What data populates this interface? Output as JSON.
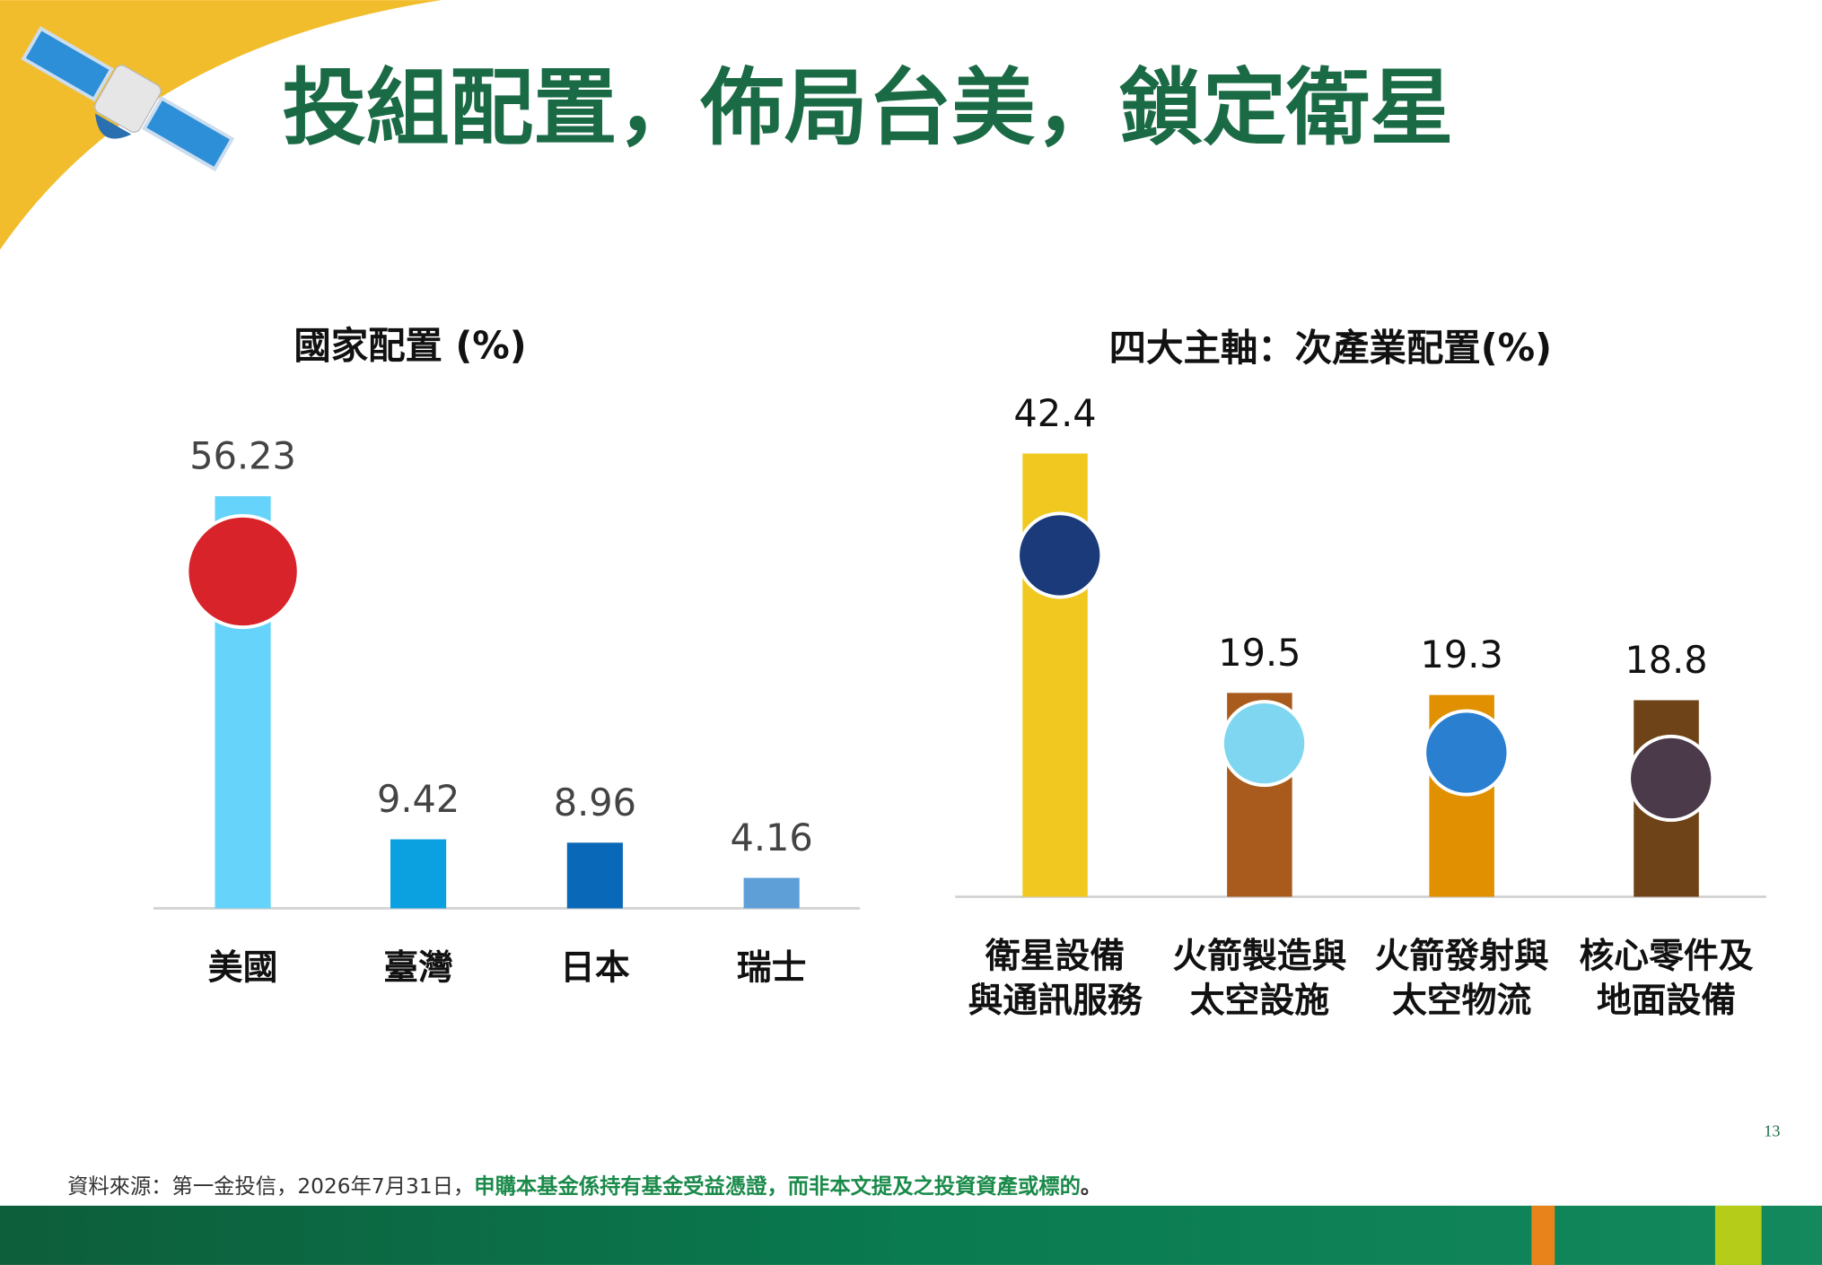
{
  "title": "投組配置，佈局台美，鎖定衛星",
  "chart_data": [
    {
      "type": "bar",
      "title": "國家配置 (%)",
      "categories": [
        "美國",
        "臺灣",
        "日本",
        "瑞士"
      ],
      "values": [
        56.23,
        9.42,
        8.96,
        4.16
      ],
      "colors": [
        "#66d3fa",
        "#0ba0e0",
        "#0a68b8",
        "#5f9fd8"
      ]
    },
    {
      "type": "bar",
      "title": "四大主軸：次產業配置(%)",
      "categories": [
        [
          "衛星設備",
          "與通訊服務"
        ],
        [
          "火箭製造與",
          "太空設施"
        ],
        [
          "火箭發射與",
          "太空物流"
        ],
        [
          "核心零件及",
          "地面設備"
        ]
      ],
      "values": [
        42.4,
        19.5,
        19.3,
        18.8
      ],
      "colors": [
        "#f0c820",
        "#a85b1c",
        "#e09000",
        "#6e4317"
      ]
    }
  ],
  "page_number": "13",
  "footer": {
    "source": "資料來源：第一金投信，2026年7月31日，",
    "notice": "申購本基金係持有基金受益憑證，而非本文提及之投資資產或標的",
    "end": "。"
  }
}
